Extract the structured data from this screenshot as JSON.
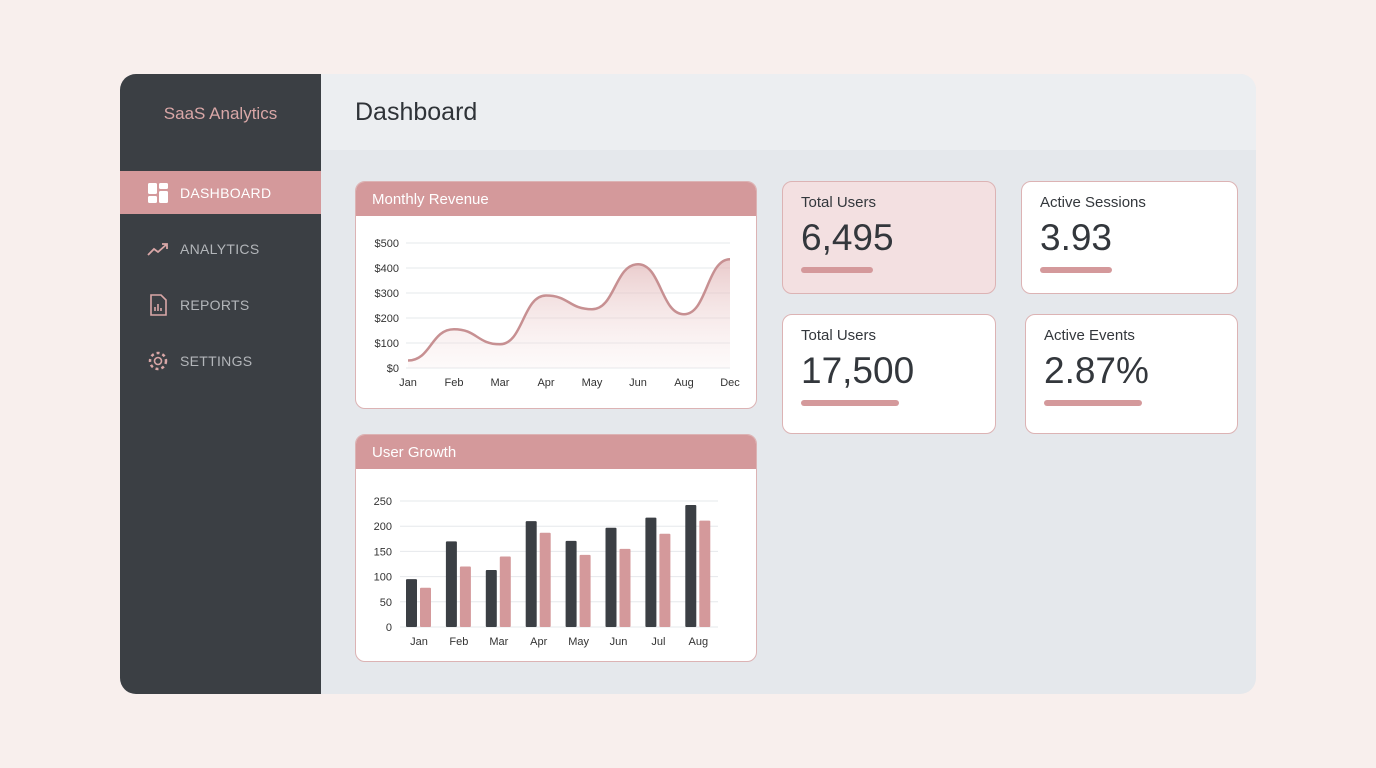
{
  "sidebar": {
    "brand": "SaaS Analytics",
    "items": [
      {
        "label": "DASHBOARD",
        "icon": "dashboard-grid-icon",
        "active": true
      },
      {
        "label": "ANALYTICS",
        "icon": "trend-line-icon"
      },
      {
        "label": "REPORTS",
        "icon": "report-document-icon"
      },
      {
        "label": "SETTINGS",
        "icon": "gear-icon"
      }
    ]
  },
  "header": {
    "title": "Dashboard"
  },
  "colors": {
    "accent": "#d4999b",
    "dark": "#3b3f44",
    "line": "#c79092"
  },
  "cards": [
    {
      "label": "Total Users",
      "value": "6,495"
    },
    {
      "label": "Active Sessions",
      "value": "3.93"
    },
    {
      "label": "Total Users",
      "value": "17,500"
    },
    {
      "label": "Active Events",
      "value": "2.87%"
    }
  ],
  "chart_data": [
    {
      "type": "area",
      "title": "Monthly Revenue",
      "categories": [
        "Jan",
        "Feb",
        "Mar",
        "Apr",
        "May",
        "Jun",
        "Aug",
        "Dec"
      ],
      "values": [
        30,
        155,
        95,
        290,
        235,
        415,
        215,
        435
      ],
      "ylim": [
        0,
        500
      ],
      "yticks": [
        "$0",
        "$100",
        "$200",
        "$300",
        "$400",
        "$500"
      ],
      "grid": true
    },
    {
      "type": "bar",
      "title": "User Growth",
      "categories": [
        "Jan",
        "Feb",
        "Mar",
        "Apr",
        "May",
        "Jun",
        "Jul",
        "Aug"
      ],
      "series": [
        {
          "values": [
            95,
            170,
            113,
            210,
            171,
            197,
            217,
            242
          ]
        },
        {
          "values": [
            78,
            120,
            140,
            187,
            143,
            155,
            185,
            211
          ]
        }
      ],
      "ylim": [
        0,
        250
      ],
      "yticks": [
        "0",
        "50",
        "100",
        "150",
        "200",
        "250"
      ],
      "grid": true
    }
  ]
}
